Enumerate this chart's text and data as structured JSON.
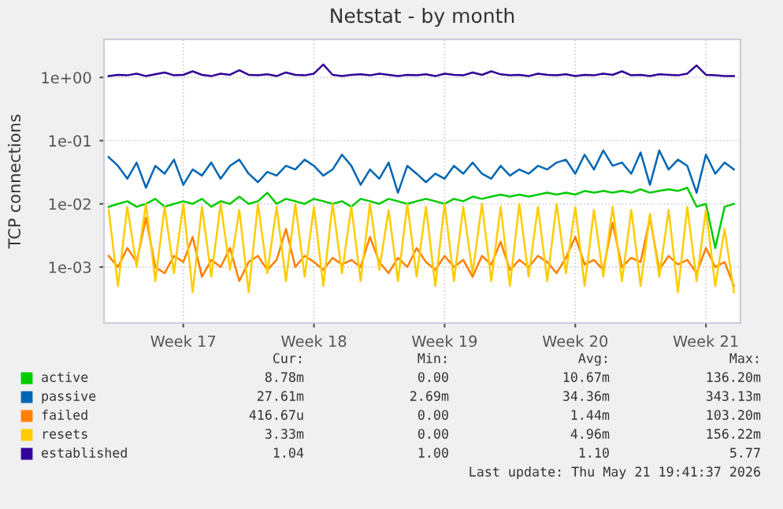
{
  "chart_data": {
    "type": "line",
    "title": "Netstat - by month",
    "ylabel": "TCP connections",
    "log": "y",
    "grid": true,
    "legend": "bottom",
    "marker": "none",
    "line_style": "solid",
    "ylim": [
      0.00013,
      4
    ],
    "yticks": [
      {
        "value": 1,
        "label": "1e+00"
      },
      {
        "value": 0.1,
        "label": "1e-01"
      },
      {
        "value": 0.01,
        "label": "1e-02"
      },
      {
        "value": 0.001,
        "label": "1e-03"
      }
    ],
    "categories": [
      null,
      null,
      null,
      null,
      null,
      null,
      null,
      null,
      "Week 17",
      null,
      null,
      null,
      null,
      null,
      null,
      null,
      null,
      null,
      null,
      null,
      null,
      null,
      "Week 18",
      null,
      null,
      null,
      null,
      null,
      null,
      null,
      null,
      null,
      null,
      null,
      null,
      null,
      "Week 19",
      null,
      null,
      null,
      null,
      null,
      null,
      null,
      null,
      null,
      null,
      null,
      null,
      null,
      "Week 20",
      null,
      null,
      null,
      null,
      null,
      null,
      null,
      null,
      null,
      null,
      null,
      null,
      null,
      "Week 21",
      null,
      null,
      null
    ],
    "series": [
      {
        "name": "active",
        "color": "#00cc00",
        "values": [
          0.009,
          0.01,
          0.011,
          0.009,
          0.01,
          0.012,
          0.009,
          0.01,
          0.011,
          0.01,
          0.012,
          0.009,
          0.011,
          0.01,
          0.013,
          0.01,
          0.011,
          0.015,
          0.01,
          0.012,
          0.011,
          0.01,
          0.012,
          0.011,
          0.01,
          0.011,
          0.009,
          0.012,
          0.011,
          0.01,
          0.012,
          0.011,
          0.01,
          0.011,
          0.012,
          0.011,
          0.01,
          0.012,
          0.011,
          0.013,
          0.012,
          0.013,
          0.014,
          0.013,
          0.014,
          0.013,
          0.014,
          0.015,
          0.014,
          0.015,
          0.014,
          0.016,
          0.015,
          0.016,
          0.015,
          0.016,
          0.015,
          0.017,
          0.015,
          0.016,
          0.017,
          0.016,
          0.018,
          0.009,
          0.01,
          0.002,
          0.009,
          0.01
        ]
      },
      {
        "name": "passive",
        "color": "#0066b3",
        "values": [
          0.055,
          0.04,
          0.025,
          0.045,
          0.018,
          0.04,
          0.03,
          0.05,
          0.02,
          0.035,
          0.028,
          0.045,
          0.025,
          0.04,
          0.05,
          0.03,
          0.022,
          0.032,
          0.028,
          0.04,
          0.035,
          0.05,
          0.04,
          0.028,
          0.035,
          0.06,
          0.04,
          0.02,
          0.035,
          0.025,
          0.045,
          0.015,
          0.04,
          0.03,
          0.022,
          0.03,
          0.025,
          0.04,
          0.03,
          0.045,
          0.03,
          0.025,
          0.04,
          0.028,
          0.035,
          0.03,
          0.04,
          0.035,
          0.045,
          0.05,
          0.03,
          0.06,
          0.035,
          0.07,
          0.04,
          0.045,
          0.03,
          0.065,
          0.02,
          0.07,
          0.035,
          0.05,
          0.04,
          0.015,
          0.06,
          0.03,
          0.045,
          0.035
        ]
      },
      {
        "name": "failed",
        "color": "#ff8000",
        "values": [
          0.0015,
          0.001,
          0.002,
          0.0012,
          0.006,
          0.001,
          0.0008,
          0.0015,
          0.0012,
          0.003,
          0.0007,
          0.0013,
          0.001,
          0.002,
          0.0006,
          0.0012,
          0.0015,
          0.0009,
          0.0013,
          0.004,
          0.001,
          0.0015,
          0.0012,
          0.0009,
          0.0014,
          0.0011,
          0.0013,
          0.001,
          0.003,
          0.0012,
          0.0008,
          0.0014,
          0.001,
          0.002,
          0.0012,
          0.0009,
          0.0015,
          0.001,
          0.0013,
          0.0007,
          0.0015,
          0.0011,
          0.0025,
          0.0009,
          0.0013,
          0.001,
          0.0015,
          0.0012,
          0.0008,
          0.0014,
          0.003,
          0.0011,
          0.0013,
          0.0009,
          0.005,
          0.001,
          0.0014,
          0.0012,
          0.006,
          0.0009,
          0.0015,
          0.0011,
          0.0013,
          0.0008,
          0.002,
          0.001,
          0.0012,
          0.0005
        ]
      },
      {
        "name": "resets",
        "color": "#ffcc00",
        "values": [
          0.008,
          0.0005,
          0.009,
          0.001,
          0.01,
          0.0006,
          0.009,
          0.0008,
          0.01,
          0.0004,
          0.009,
          0.0007,
          0.01,
          0.0009,
          0.008,
          0.0004,
          0.01,
          0.0008,
          0.009,
          0.0006,
          0.01,
          0.0007,
          0.009,
          0.0005,
          0.01,
          0.0008,
          0.009,
          0.0006,
          0.01,
          0.0009,
          0.008,
          0.0006,
          0.01,
          0.0007,
          0.009,
          0.0005,
          0.01,
          0.0006,
          0.009,
          0.0008,
          0.01,
          0.0006,
          0.009,
          0.0005,
          0.01,
          0.0007,
          0.009,
          0.0006,
          0.01,
          0.0008,
          0.009,
          0.0005,
          0.008,
          0.0007,
          0.009,
          0.0006,
          0.008,
          0.0005,
          0.007,
          0.0007,
          0.008,
          0.0004,
          0.009,
          0.0006,
          0.008,
          0.0005,
          0.004,
          0.0004
        ]
      },
      {
        "name": "established",
        "color": "#330099",
        "values": [
          1.05,
          1.1,
          1.08,
          1.15,
          1.05,
          1.12,
          1.2,
          1.08,
          1.1,
          1.25,
          1.1,
          1.05,
          1.15,
          1.1,
          1.3,
          1.1,
          1.08,
          1.12,
          1.05,
          1.2,
          1.1,
          1.08,
          1.15,
          1.6,
          1.1,
          1.05,
          1.1,
          1.12,
          1.08,
          1.15,
          1.1,
          1.05,
          1.1,
          1.08,
          1.12,
          1.05,
          1.15,
          1.1,
          1.08,
          1.2,
          1.1,
          1.25,
          1.12,
          1.08,
          1.1,
          1.05,
          1.15,
          1.1,
          1.08,
          1.12,
          1.05,
          1.1,
          1.08,
          1.15,
          1.1,
          1.25,
          1.08,
          1.1,
          1.05,
          1.12,
          1.1,
          1.08,
          1.15,
          1.55,
          1.1,
          1.08,
          1.05,
          1.05
        ]
      }
    ],
    "annotations": [
      "Cur:",
      "Min:",
      "Avg:",
      "Max:",
      "8.78m",
      "0.00",
      "10.67m",
      "136.20m",
      "27.61m",
      "2.69m",
      "34.36m",
      "343.13m",
      "416.67u",
      "0.00",
      "1.44m",
      "103.20m",
      "3.33m",
      "0.00",
      "4.96m",
      "156.22m",
      "1.04",
      "1.00",
      "1.10",
      "5.77",
      "Last update: Thu May 21 19:41:37 2026"
    ]
  }
}
